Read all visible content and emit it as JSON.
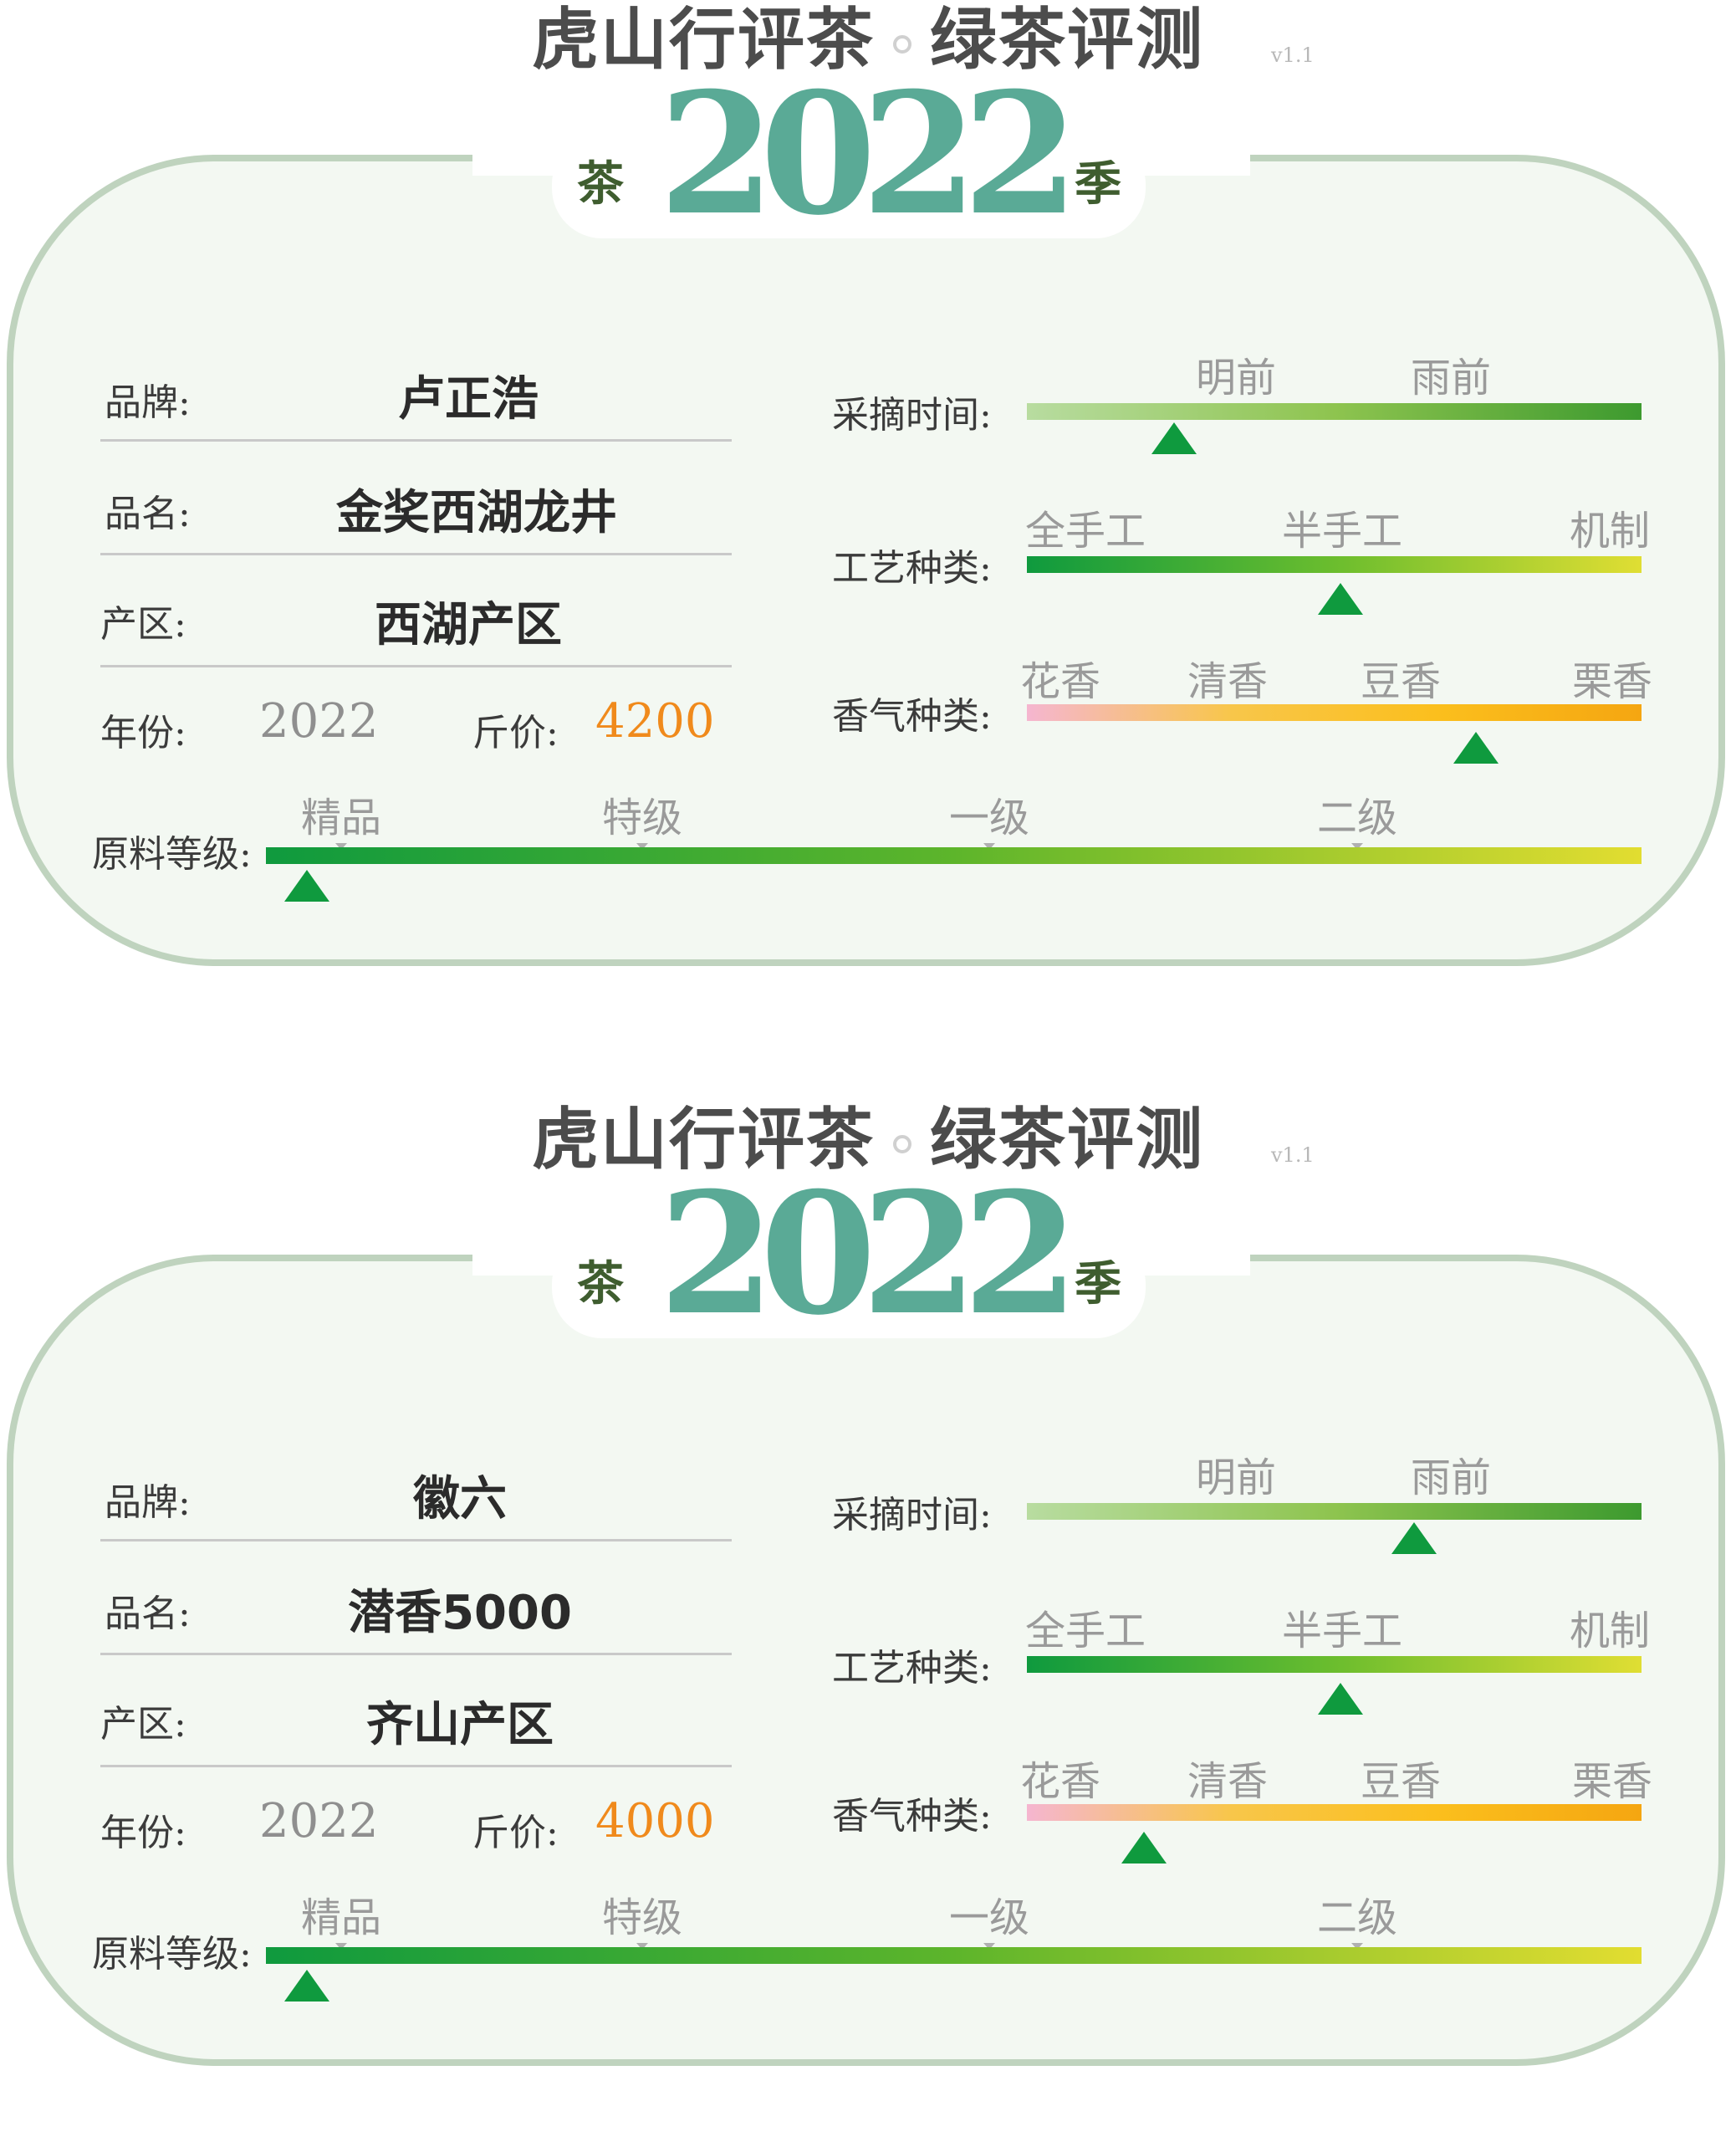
{
  "cards": [
    {
      "header": {
        "title_left": "虎山行评茶",
        "title_right": "绿茶评测",
        "version": "v1.1",
        "year": "2022",
        "season_left": "茶",
        "season_right": "季"
      },
      "labels": {
        "brand": "品牌:",
        "name": "品名:",
        "region": "产区:",
        "year": "年份:",
        "price": "斤价:",
        "harvest": "采摘时间:",
        "craft": "工艺种类:",
        "aroma": "香气种类:",
        "grade": "原料等级:"
      },
      "brand": "卢正浩",
      "name": "金奖西湖龙井",
      "region": "西湖产区",
      "year": "2022",
      "price": "4200",
      "harvest": {
        "ticks": [
          "明前",
          "雨前"
        ],
        "level": 0.24
      },
      "craft": {
        "ticks": [
          "全手工",
          "半手工",
          "机制"
        ],
        "level": 0.51
      },
      "aroma": {
        "ticks": [
          "花香",
          "清香",
          "豆香",
          "栗香"
        ],
        "level": 0.73
      },
      "grade": {
        "ticks": [
          "精品",
          "特级",
          "一级",
          "二级"
        ],
        "level": 0.03
      }
    },
    {
      "header": {
        "title_left": "虎山行评茶",
        "title_right": "绿茶评测",
        "version": "v1.1",
        "year": "2022",
        "season_left": "茶",
        "season_right": "季"
      },
      "labels": {
        "brand": "品牌:",
        "name": "品名:",
        "region": "产区:",
        "year": "年份:",
        "price": "斤价:",
        "harvest": "采摘时间:",
        "craft": "工艺种类:",
        "aroma": "香气种类:",
        "grade": "原料等级:"
      },
      "brand": "徽六",
      "name": "潜香5000",
      "region": "齐山产区",
      "year": "2022",
      "price": "4000",
      "harvest": {
        "ticks": [
          "明前",
          "雨前"
        ],
        "level": 0.63
      },
      "craft": {
        "ticks": [
          "全手工",
          "半手工",
          "机制"
        ],
        "level": 0.51
      },
      "aroma": {
        "ticks": [
          "花香",
          "清香",
          "豆香",
          "栗香"
        ],
        "level": 0.19
      },
      "grade": {
        "ticks": [
          "精品",
          "特级",
          "一级",
          "二级"
        ],
        "level": 0.03
      }
    }
  ]
}
